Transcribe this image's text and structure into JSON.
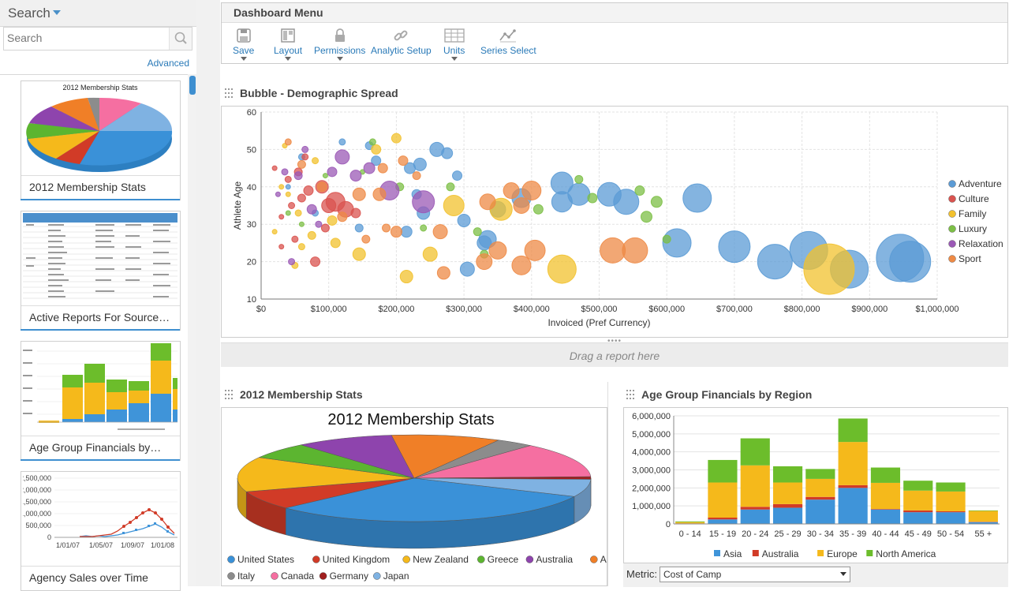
{
  "sidebar": {
    "title": "Search",
    "search_placeholder": "Search",
    "advanced_label": "Advanced",
    "cards": [
      {
        "title": "2012 Membership Stats",
        "thumb_title": "2012 Membership Stats"
      },
      {
        "title": "Active Reports For Source…"
      },
      {
        "title": "Age Group Financials by…"
      },
      {
        "title": "Agency Sales over Time"
      }
    ]
  },
  "menu": {
    "title": "Dashboard Menu",
    "tools": [
      {
        "label": "Save",
        "icon": "save-icon",
        "dropdown": true
      },
      {
        "label": "Layout",
        "icon": "layout-icon",
        "dropdown": true
      },
      {
        "label": "Permissions",
        "icon": "lock-icon",
        "dropdown": true
      },
      {
        "label": "Analytic Setup",
        "icon": "link-icon",
        "dropdown": false
      },
      {
        "label": "Units",
        "icon": "grid-icon",
        "dropdown": true
      },
      {
        "label": "Series Select",
        "icon": "series-icon",
        "dropdown": false
      }
    ]
  },
  "panels": {
    "bubble_title": "Bubble - Demographic Spread",
    "drop_text": "Drag a report here",
    "pie_panel_title": "2012 Membership Stats",
    "stack_panel_title": "Age Group Financials by Region",
    "metric_label": "Metric:",
    "metric_value": "Cost of Camp"
  },
  "chart_data": [
    {
      "type": "scatter",
      "title": "",
      "xlabel": "Invoiced (Pref Currency)",
      "ylabel": "Athlete Age",
      "xlim": [
        0,
        1000000
      ],
      "ylim": [
        10,
        60
      ],
      "x_ticks": [
        "$0",
        "$100,000",
        "$200,000",
        "$300,000",
        "$400,000",
        "$500,000",
        "$600,000",
        "$700,000",
        "$800,000",
        "$900,000",
        "$1,000,000"
      ],
      "y_ticks": [
        "10",
        "20",
        "30",
        "40",
        "50",
        "60"
      ],
      "grid": true,
      "legend_position": "right",
      "series": [
        {
          "name": "Adventure",
          "color": "#5b9bd5",
          "points": [
            [
              945000,
              21,
              30
            ],
            [
              960000,
              20,
              26
            ],
            [
              870000,
              18,
              24
            ],
            [
              810000,
              23,
              24
            ],
            [
              760000,
              20,
              22
            ],
            [
              700000,
              24,
              20
            ],
            [
              615000,
              25,
              18
            ],
            [
              645000,
              37,
              18
            ],
            [
              540000,
              36,
              16
            ],
            [
              515000,
              38,
              15
            ],
            [
              470000,
              38,
              14
            ],
            [
              445000,
              41,
              14
            ],
            [
              445000,
              36,
              13
            ],
            [
              385000,
              37,
              12
            ],
            [
              350000,
              34,
              10
            ],
            [
              330000,
              25,
              9
            ],
            [
              300000,
              31,
              8
            ],
            [
              275000,
              49,
              7
            ],
            [
              260000,
              50,
              9
            ],
            [
              240000,
              33,
              8
            ],
            [
              235000,
              46,
              8
            ],
            [
              215000,
              28,
              7
            ],
            [
              220000,
              45,
              7
            ],
            [
              170000,
              47,
              6
            ],
            [
              160000,
              51,
              5
            ],
            [
              120000,
              52,
              4
            ],
            [
              60000,
              48,
              4
            ],
            [
              40000,
              40,
              3
            ],
            [
              305000,
              18,
              9
            ],
            [
              335000,
              26,
              11
            ],
            [
              230000,
              38,
              6
            ],
            [
              145000,
              29,
              5
            ],
            [
              80000,
              33,
              4
            ],
            [
              290000,
              43,
              6
            ]
          ]
        },
        {
          "name": "Culture",
          "color": "#d9534f",
          "points": [
            [
              110000,
              36,
              12
            ],
            [
              125000,
              34,
              10
            ],
            [
              100000,
              35,
              9
            ],
            [
              90000,
              40,
              8
            ],
            [
              55000,
              44,
              5
            ],
            [
              70000,
              39,
              6
            ],
            [
              40000,
              42,
              4
            ],
            [
              60000,
              37,
              5
            ],
            [
              50000,
              26,
              4
            ],
            [
              80000,
              20,
              6
            ],
            [
              30000,
              32,
              3
            ],
            [
              20000,
              45,
              3
            ],
            [
              65000,
              48,
              4
            ],
            [
              95000,
              29,
              5
            ],
            [
              140000,
              33,
              6
            ],
            [
              30000,
              24,
              3
            ],
            [
              45000,
              35,
              4
            ]
          ]
        },
        {
          "name": "Family",
          "color": "#f2c12e",
          "points": [
            [
              840000,
              18,
              32
            ],
            [
              445000,
              18,
              18
            ],
            [
              355000,
              34,
              14
            ],
            [
              285000,
              35,
              13
            ],
            [
              250000,
              22,
              9
            ],
            [
              215000,
              16,
              8
            ],
            [
              145000,
              22,
              8
            ],
            [
              105000,
              31,
              6
            ],
            [
              75000,
              27,
              5
            ],
            [
              60000,
              24,
              4
            ],
            [
              110000,
              25,
              6
            ],
            [
              40000,
              38,
              3
            ],
            [
              55000,
              33,
              4
            ],
            [
              30000,
              40,
              3
            ],
            [
              170000,
              50,
              6
            ],
            [
              200000,
              53,
              6
            ],
            [
              80000,
              47,
              4
            ],
            [
              20000,
              28,
              3
            ],
            [
              35000,
              51,
              3
            ],
            [
              50000,
              19,
              4
            ]
          ]
        },
        {
          "name": "Luxury",
          "color": "#7cbf45",
          "points": [
            [
              585000,
              36,
              7
            ],
            [
              570000,
              32,
              7
            ],
            [
              490000,
              37,
              6
            ],
            [
              560000,
              39,
              6
            ],
            [
              410000,
              34,
              6
            ],
            [
              320000,
              28,
              5
            ],
            [
              280000,
              40,
              5
            ],
            [
              330000,
              22,
              5
            ],
            [
              205000,
              40,
              5
            ],
            [
              240000,
              29,
              4
            ],
            [
              600000,
              26,
              5
            ],
            [
              470000,
              42,
              5
            ],
            [
              165000,
              52,
              4
            ],
            [
              95000,
              43,
              3
            ],
            [
              60000,
              30,
              3
            ],
            [
              40000,
              33,
              3
            ],
            [
              150000,
              44,
              3
            ]
          ]
        },
        {
          "name": "Relaxation",
          "color": "#9b59b6",
          "points": [
            [
              240000,
              36,
              14
            ],
            [
              190000,
              39,
              12
            ],
            [
              120000,
              48,
              9
            ],
            [
              75000,
              34,
              6
            ],
            [
              55000,
              43,
              5
            ],
            [
              35000,
              44,
              4
            ],
            [
              140000,
              43,
              7
            ],
            [
              85000,
              30,
              4
            ],
            [
              45000,
              20,
              4
            ],
            [
              25000,
              38,
              3
            ],
            [
              105000,
              44,
              6
            ],
            [
              160000,
              45,
              7
            ],
            [
              65000,
              50,
              4
            ]
          ]
        },
        {
          "name": "Sport",
          "color": "#ee8a45",
          "points": [
            [
              520000,
              23,
              16
            ],
            [
              553000,
              23,
              16
            ],
            [
              405000,
              23,
              13
            ],
            [
              385000,
              19,
              12
            ],
            [
              350000,
              23,
              11
            ],
            [
              330000,
              20,
              10
            ],
            [
              335000,
              36,
              10
            ],
            [
              370000,
              39,
              10
            ],
            [
              400000,
              39,
              12
            ],
            [
              385000,
              35,
              10
            ],
            [
              265000,
              28,
              9
            ],
            [
              270000,
              17,
              8
            ],
            [
              200000,
              28,
              7
            ],
            [
              175000,
              38,
              8
            ],
            [
              145000,
              38,
              8
            ],
            [
              120000,
              32,
              6
            ],
            [
              90000,
              40,
              6
            ],
            [
              60000,
              46,
              5
            ],
            [
              40000,
              52,
              4
            ],
            [
              180000,
              45,
              6
            ],
            [
              210000,
              47,
              6
            ],
            [
              230000,
              43,
              5
            ],
            [
              155000,
              26,
              5
            ],
            [
              185000,
              29,
              5
            ]
          ]
        }
      ]
    },
    {
      "type": "pie",
      "title": "2012 Membership Stats",
      "legend_position": "bottom",
      "categories": [
        "United States",
        "United Kingdom",
        "New Zealand",
        "Greece",
        "Australia",
        "Austria",
        "Italy",
        "Canada",
        "Germany",
        "Japan"
      ],
      "values": [
        31,
        7,
        13,
        6,
        9,
        10,
        3.5,
        13,
        1,
        6.5
      ],
      "colors": [
        "#3a91d8",
        "#d13b27",
        "#f5b91b",
        "#5cb530",
        "#8e44ad",
        "#f07f27",
        "#8c8c8c",
        "#f56fa1",
        "#a01f1f",
        "#7fb2e2"
      ]
    },
    {
      "type": "bar",
      "title": "",
      "stacked": true,
      "categories": [
        "0 - 14",
        "15 - 19",
        "20 - 24",
        "25 - 29",
        "30 - 34",
        "35 - 39",
        "40 - 44",
        "45 - 49",
        "50 - 54",
        "55 +"
      ],
      "ylim": [
        0,
        6000000
      ],
      "y_ticks": [
        "0",
        "1,000,000",
        "2,000,000",
        "3,000,000",
        "4,000,000",
        "5,000,000",
        "6,000,000"
      ],
      "legend_position": "bottom",
      "series": [
        {
          "name": "Asia",
          "color": "#3f94d9",
          "values": [
            20000,
            250000,
            800000,
            900000,
            1350000,
            2000000,
            800000,
            650000,
            650000,
            100000
          ]
        },
        {
          "name": "Australia",
          "color": "#d13b27",
          "values": [
            10000,
            100000,
            150000,
            200000,
            150000,
            150000,
            30000,
            100000,
            50000,
            20000
          ]
        },
        {
          "name": "Europe",
          "color": "#f5b91b",
          "values": [
            70000,
            1950000,
            2300000,
            1200000,
            1000000,
            2400000,
            1450000,
            1100000,
            1100000,
            600000
          ]
        },
        {
          "name": "North America",
          "color": "#6cbd2b",
          "values": [
            40000,
            1250000,
            1500000,
            900000,
            550000,
            1300000,
            850000,
            550000,
            500000,
            30000
          ]
        }
      ]
    }
  ]
}
